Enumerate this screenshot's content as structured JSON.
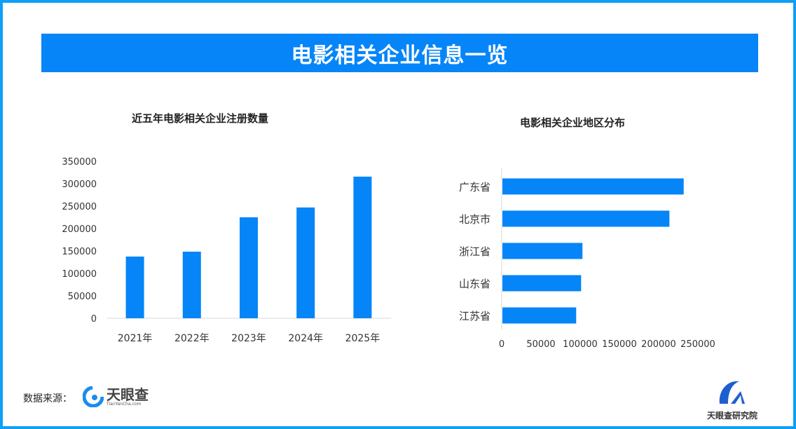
{
  "header": {
    "title": "电影相关企业信息一览"
  },
  "footer": {
    "source_label": "数据来源：",
    "source_logo_text": "天眼查",
    "source_logo_sub": "TianYanCha.com",
    "institute": "天眼查研究院"
  },
  "colors": {
    "bar": "#0585f8",
    "banner": "#0585f8",
    "frame": "#0fa0f5"
  },
  "chart_data": [
    {
      "type": "bar",
      "title": "近五年电影相关企业注册数量",
      "categories": [
        "2021年",
        "2022年",
        "2023年",
        "2024年",
        "2025年"
      ],
      "values": [
        137500,
        148400,
        225000,
        246900,
        315600
      ],
      "ylim": [
        0,
        350000
      ],
      "yticks": [
        "0",
        "50000",
        "100000",
        "150000",
        "200000",
        "250000",
        "300000",
        "350000"
      ],
      "grid": false,
      "orientation": "vertical"
    },
    {
      "type": "bar",
      "title": "电影相关企业地区分布",
      "categories": [
        "广东省",
        "北京市",
        "浙江省",
        "山东省",
        "江苏省"
      ],
      "values": [
        231000,
        212800,
        102000,
        100300,
        94000
      ],
      "xlim": [
        0,
        250000
      ],
      "xticks": [
        "0",
        "50000",
        "100000",
        "150000",
        "200000",
        "250000"
      ],
      "grid": false,
      "orientation": "horizontal"
    }
  ]
}
